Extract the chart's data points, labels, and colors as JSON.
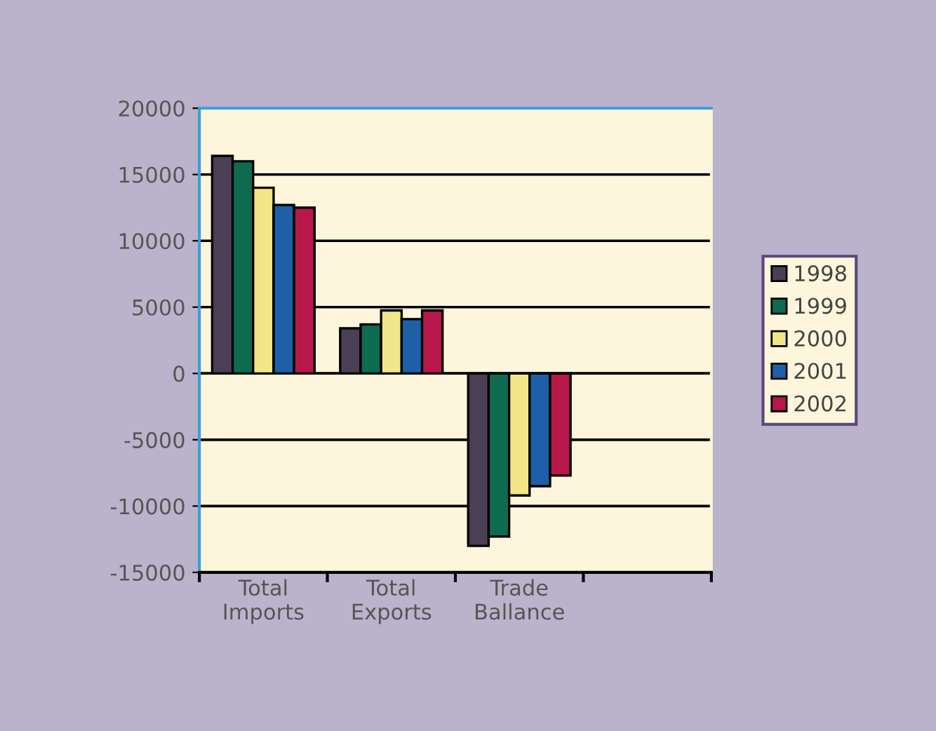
{
  "chart_data": {
    "type": "bar",
    "categories": [
      "Total\nImports",
      "Total\nExports",
      "Trade\nBallance",
      null
    ],
    "series": [
      {
        "name": "1998",
        "color": "#4a3f55",
        "values": [
          16400,
          3400,
          -13000,
          null
        ]
      },
      {
        "name": "1999",
        "color": "#0f6b50",
        "values": [
          16000,
          3700,
          -12300,
          null
        ]
      },
      {
        "name": "2000",
        "color": "#f2e68a",
        "values": [
          14000,
          4750,
          -9200,
          null
        ]
      },
      {
        "name": "2001",
        "color": "#1f5fa8",
        "values": [
          12700,
          4100,
          -8500,
          null
        ]
      },
      {
        "name": "2002",
        "color": "#b8174a",
        "values": [
          12500,
          4750,
          -7700,
          null
        ]
      }
    ],
    "ylim": [
      -15000,
      20000
    ],
    "yticks": [
      -15000,
      -10000,
      -5000,
      0,
      5000,
      10000,
      15000,
      20000
    ],
    "grid": "y",
    "legend": "right"
  }
}
